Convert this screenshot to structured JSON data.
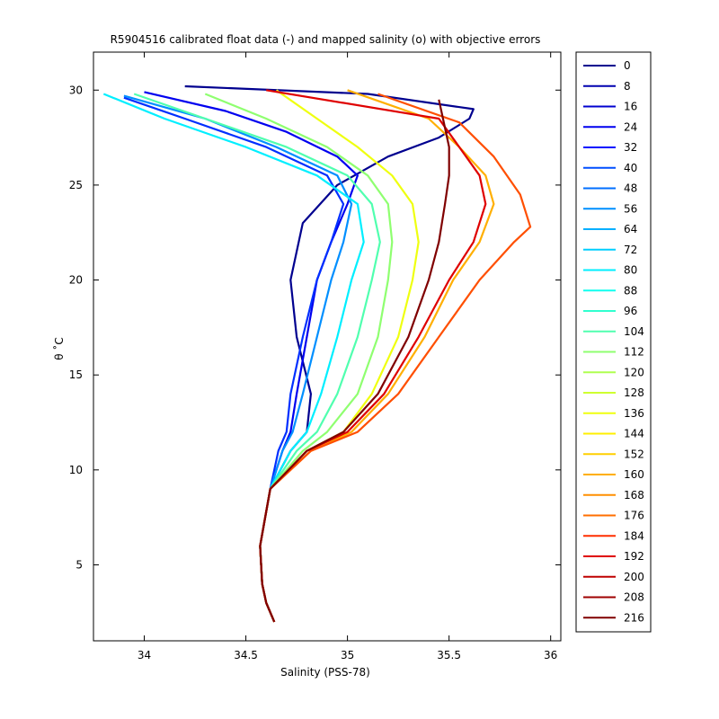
{
  "chart_data": {
    "type": "line",
    "title": "R5904516 calibrated float data (-) and mapped salinity (o) with objective errors",
    "xlabel": "Salinity (PSS-78)",
    "ylabel": "θ ˚C",
    "xlim": [
      33.75,
      36.05
    ],
    "ylim": [
      1.0,
      32.0
    ],
    "xticks": [
      34,
      34.5,
      35,
      35.5,
      36
    ],
    "xtick_labels": [
      "34",
      "34.5",
      "35",
      "35.5",
      "36"
    ],
    "yticks": [
      5,
      10,
      15,
      20,
      25,
      30
    ],
    "ytick_labels": [
      "5",
      "10",
      "15",
      "20",
      "25",
      "30"
    ],
    "grid": false,
    "legend_position": "outside-right",
    "legend_entries": [
      "0",
      "8",
      "16",
      "24",
      "32",
      "40",
      "48",
      "56",
      "64",
      "72",
      "80",
      "88",
      "96",
      "104",
      "112",
      "120",
      "128",
      "136",
      "144",
      "152",
      "160",
      "168",
      "176",
      "184",
      "192",
      "200",
      "208",
      "216"
    ],
    "legend_colors": [
      "#00008f",
      "#0000af",
      "#0000cf",
      "#0000ef",
      "#000fff",
      "#002fff",
      "#004fff",
      "#006fff",
      "#008fff",
      "#00afff",
      "#00cfff",
      "#00efff",
      "#10ffef",
      "#30ffcf",
      "#50ffaf",
      "#70ff8f",
      "#8fff70",
      "#afff50",
      "#cfff30",
      "#efff10",
      "#ffef00",
      "#ffcf00",
      "#ffaf00",
      "#ff8f00",
      "#ff6f00",
      "#ff4f00",
      "#ff2f00",
      "#df0000",
      "#bf0000",
      "#9f0000",
      "#800000"
    ],
    "series": [
      {
        "name": "0",
        "x": [
          34.64,
          34.6,
          34.58,
          34.57,
          34.62,
          34.72,
          34.8,
          34.82,
          34.75,
          34.72,
          34.78,
          34.95,
          35.2,
          35.45,
          35.6,
          35.62,
          35.1,
          34.2
        ],
        "y": [
          2,
          3,
          4,
          6,
          9,
          11,
          12,
          14,
          17,
          20,
          23,
          25,
          26.5,
          27.5,
          28.5,
          29,
          29.8,
          30.2
        ]
      },
      {
        "name": "16",
        "x": [
          34.64,
          34.6,
          34.58,
          34.57,
          34.62,
          34.68,
          34.72,
          34.75,
          34.8,
          34.85,
          34.92,
          35.0,
          35.05,
          34.95,
          34.7,
          34.4,
          34.0
        ],
        "y": [
          2,
          3,
          4,
          6,
          9,
          11,
          12,
          14,
          17,
          20,
          22,
          24,
          25.5,
          26.5,
          27.8,
          28.9,
          29.9
        ]
      },
      {
        "name": "40",
        "x": [
          34.64,
          34.6,
          34.58,
          34.57,
          34.62,
          34.66,
          34.7,
          34.72,
          34.78,
          34.85,
          34.92,
          34.98,
          34.9,
          34.6,
          34.2,
          33.9
        ],
        "y": [
          2,
          3,
          4,
          6,
          9,
          11,
          12,
          14,
          17,
          20,
          22,
          24,
          25.5,
          27,
          28.5,
          29.6
        ]
      },
      {
        "name": "64",
        "x": [
          34.64,
          34.6,
          34.58,
          34.57,
          34.62,
          34.68,
          34.73,
          34.78,
          34.85,
          34.92,
          34.98,
          35.02,
          34.95,
          34.65,
          34.3,
          33.9
        ],
        "y": [
          2,
          3,
          4,
          6,
          9,
          11,
          12,
          14,
          17,
          20,
          22,
          24,
          25.5,
          27,
          28.5,
          29.7
        ]
      },
      {
        "name": "88",
        "x": [
          34.64,
          34.6,
          34.58,
          34.57,
          34.62,
          34.72,
          34.8,
          34.87,
          34.95,
          35.02,
          35.08,
          35.05,
          34.85,
          34.5,
          34.1,
          33.8
        ],
        "y": [
          2,
          3,
          4,
          6,
          9,
          11,
          12,
          14,
          17,
          20,
          22,
          24,
          25.5,
          27,
          28.5,
          29.8
        ]
      },
      {
        "name": "112",
        "x": [
          34.64,
          34.6,
          34.58,
          34.57,
          34.62,
          34.75,
          34.85,
          34.95,
          35.05,
          35.12,
          35.16,
          35.12,
          35.0,
          34.7,
          34.3,
          33.95
        ],
        "y": [
          2,
          3,
          4,
          6,
          9,
          11,
          12,
          14,
          17,
          20,
          22,
          24,
          25.5,
          27,
          28.5,
          29.8
        ]
      },
      {
        "name": "136",
        "x": [
          34.64,
          34.6,
          34.58,
          34.57,
          34.62,
          34.78,
          34.9,
          35.05,
          35.15,
          35.2,
          35.22,
          35.2,
          35.1,
          34.9,
          34.6,
          34.3
        ],
        "y": [
          2,
          3,
          4,
          6,
          9,
          11,
          12,
          14,
          17,
          20,
          22,
          24,
          25.5,
          27,
          28.5,
          29.8
        ]
      },
      {
        "name": "152",
        "x": [
          34.64,
          34.6,
          34.58,
          34.57,
          34.62,
          34.8,
          34.98,
          35.12,
          35.25,
          35.32,
          35.35,
          35.32,
          35.22,
          35.05,
          34.85,
          34.65
        ],
        "y": [
          2,
          3,
          4,
          6,
          9,
          11,
          12,
          14,
          17,
          20,
          22,
          24,
          25.5,
          27,
          28.5,
          30
        ]
      },
      {
        "name": "168",
        "x": [
          34.64,
          34.6,
          34.58,
          34.57,
          34.62,
          34.82,
          35.02,
          35.2,
          35.38,
          35.52,
          35.65,
          35.72,
          35.68,
          35.55,
          35.4,
          35.0
        ],
        "y": [
          2,
          3,
          4,
          6,
          9,
          11,
          12,
          14,
          17,
          20,
          22,
          24,
          25.5,
          27,
          28.5,
          30
        ]
      },
      {
        "name": "184",
        "x": [
          34.64,
          34.6,
          34.58,
          34.57,
          34.62,
          34.82,
          35.05,
          35.25,
          35.45,
          35.65,
          35.82,
          35.9,
          35.85,
          35.72,
          35.55,
          35.15
        ],
        "y": [
          2,
          3,
          4,
          6,
          9,
          11,
          12,
          14,
          17,
          20,
          22,
          22.8,
          24.5,
          26.5,
          28.3,
          29.8
        ]
      },
      {
        "name": "200",
        "x": [
          34.64,
          34.6,
          34.58,
          34.57,
          34.62,
          34.8,
          35.0,
          35.18,
          35.35,
          35.5,
          35.62,
          35.68,
          35.65,
          35.55,
          35.45,
          34.6
        ],
        "y": [
          2,
          3,
          4,
          6,
          9,
          11,
          12,
          14,
          17,
          20,
          22,
          24,
          25.5,
          27,
          28.5,
          30
        ]
      },
      {
        "name": "216",
        "x": [
          34.64,
          34.6,
          34.58,
          34.57,
          34.62,
          34.8,
          34.98,
          35.15,
          35.3,
          35.4,
          35.45,
          35.48,
          35.5,
          35.5,
          35.47,
          35.45
        ],
        "y": [
          2,
          3,
          4,
          6,
          9,
          11,
          12,
          14,
          17,
          20,
          22,
          24,
          25.5,
          27,
          28.5,
          29.5
        ]
      }
    ]
  }
}
